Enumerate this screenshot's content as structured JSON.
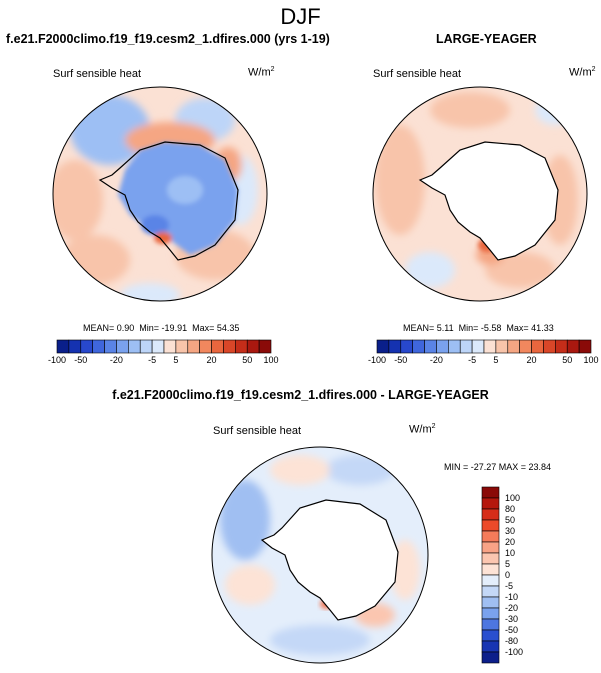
{
  "title": "DJF",
  "panels": [
    {
      "name": "model",
      "title": "f.e21.F2000climo.f19_f19.cesm2_1.dfires.000 (yrs 1-19)",
      "variable": "Surf sensible heat",
      "units_base": "W/m",
      "units_exp": "2",
      "stats": {
        "mean": "MEAN=   0.90",
        "min": "Min= -19.91",
        "max": "Max=  54.35"
      }
    },
    {
      "name": "obs",
      "title": "LARGE-YEAGER",
      "variable": "Surf sensible heat",
      "units_base": "W/m",
      "units_exp": "2",
      "stats": {
        "mean": "MEAN=   5.11",
        "min": "Min=  -5.58",
        "max": "Max=  41.33"
      }
    },
    {
      "name": "diff",
      "title": "f.e21.F2000climo.f19_f19.cesm2_1.dfires.000 - LARGE-YEAGER",
      "variable": "Surf sensible heat",
      "units_base": "W/m",
      "units_exp": "2",
      "stats": {
        "minmax": "MIN = -27.27  MAX =  23.84"
      }
    }
  ],
  "colorbar_top": {
    "ticks": [
      "-100",
      "-50",
      "-20",
      "-5",
      "5",
      "20",
      "50",
      "100"
    ],
    "levels": [
      -100,
      -75,
      -50,
      -40,
      -30,
      -20,
      -15,
      -10,
      -5,
      0,
      5,
      10,
      15,
      20,
      30,
      40,
      50,
      75,
      100
    ],
    "colors": [
      "#0a1f8a",
      "#1532b0",
      "#2848cc",
      "#3f66dc",
      "#5a84e6",
      "#7aa2ee",
      "#9dbff4",
      "#bdd5f8",
      "#dbe9fb",
      "#fbe1d4",
      "#f8c4aa",
      "#f5a683",
      "#f1875e",
      "#e9663e",
      "#d94628",
      "#c42d19",
      "#a9180f",
      "#8a0a08"
    ]
  },
  "colorbar_diff": {
    "ticks": [
      "100",
      "80",
      "50",
      "30",
      "20",
      "10",
      "5",
      "0",
      "-5",
      "-10",
      "-20",
      "-30",
      "-50",
      "-80",
      "-100"
    ],
    "colors": [
      "#8a0a08",
      "#b5170d",
      "#d62d19",
      "#ec4a2a",
      "#f47b5a",
      "#f8a386",
      "#fbc6b0",
      "#fde3d6",
      "#e4eefb",
      "#c4d8f7",
      "#a0bff2",
      "#7aa2ee",
      "#4d76e0",
      "#2a4fcf",
      "#1835b2",
      "#0c1f8a"
    ]
  },
  "chart_data": [
    {
      "type": "polar-map",
      "title": "f.e21.F2000climo.f19_f19.cesm2_1.dfires.000 (yrs 1-19)",
      "variable": "Surf sensible heat",
      "units": "W/m2",
      "mean": 0.9,
      "min": -19.91,
      "max": 54.35,
      "contour_levels": [
        -100,
        -75,
        -50,
        -40,
        -30,
        -20,
        -15,
        -10,
        -5,
        0,
        5,
        10,
        15,
        20,
        30,
        40,
        50,
        75,
        100
      ]
    },
    {
      "type": "polar-map",
      "title": "LARGE-YEAGER",
      "variable": "Surf sensible heat",
      "units": "W/m2",
      "mean": 5.11,
      "min": -5.58,
      "max": 41.33,
      "contour_levels": [
        -100,
        -75,
        -50,
        -40,
        -30,
        -20,
        -15,
        -10,
        -5,
        0,
        5,
        10,
        15,
        20,
        30,
        40,
        50,
        75,
        100
      ]
    },
    {
      "type": "polar-map",
      "title": "f.e21.F2000climo.f19_f19.cesm2_1.dfires.000 - LARGE-YEAGER",
      "variable": "Surf sensible heat",
      "units": "W/m2",
      "min": -27.27,
      "max": 23.84,
      "contour_levels": [
        -100,
        -80,
        -50,
        -30,
        -20,
        -10,
        -5,
        0,
        5,
        10,
        20,
        30,
        50,
        80,
        100
      ]
    }
  ]
}
